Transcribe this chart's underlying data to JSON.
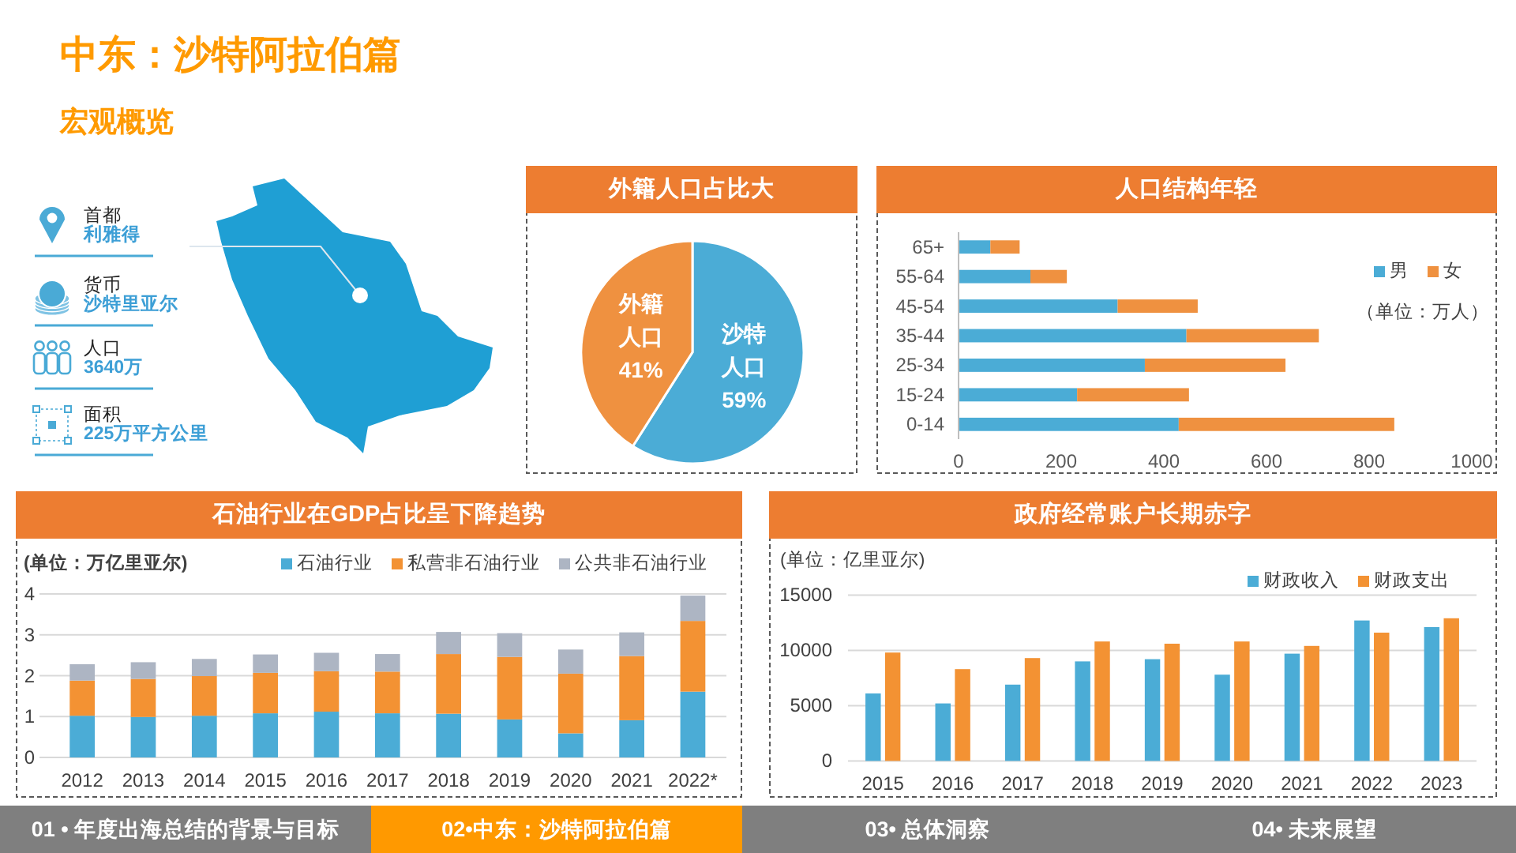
{
  "chart_data": [
    {
      "type": "other",
      "title": "中东：沙特阿拉伯篇",
      "subtitle": "宏观概览",
      "annotations": [
        "首都",
        "利雅得",
        "货币",
        "沙特里亚尔",
        "人口",
        "3640万",
        "面积",
        "225万平方公里"
      ]
    },
    {
      "type": "pie",
      "title": "外籍人口占比大",
      "categories": [
        "沙特人口",
        "外籍人口"
      ],
      "values": [
        59,
        41
      ],
      "colors": [
        "#4bacd6",
        "#ef9140"
      ],
      "value_labels": [
        "59%",
        "41%"
      ]
    },
    {
      "type": "bar",
      "orientation": "horizontal",
      "stacked": true,
      "title": "人口结构年轻",
      "categories": [
        "65+",
        "55-64",
        "45-54",
        "35-44",
        "25-34",
        "15-24",
        "0-14"
      ],
      "series": [
        {
          "name": "男",
          "color": "#4bacd6",
          "values": [
            62,
            140,
            310,
            444,
            363,
            231,
            429
          ]
        },
        {
          "name": "女",
          "color": "#ef9140",
          "values": [
            57,
            71,
            156,
            258,
            274,
            218,
            420
          ]
        }
      ],
      "xlim": [
        0,
        1000
      ],
      "xticks": [
        0,
        200,
        400,
        600,
        800,
        1000
      ],
      "legend": "right",
      "annotations": [
        "（单位：万人）"
      ]
    },
    {
      "type": "bar",
      "stacked": true,
      "title": "石油行业在GDP占比呈下降趋势",
      "x": [
        2012,
        2013,
        2014,
        2015,
        2016,
        2017,
        2018,
        2019,
        2020,
        2021,
        2022
      ],
      "xlim": [
        2011.3,
        2022.55
      ],
      "xticks": [
        2012,
        2013,
        2014,
        2015,
        2016,
        2017,
        2018,
        2019,
        2020,
        2021,
        {
          "value": 2022,
          "label": "2022*"
        }
      ],
      "series": [
        {
          "name": "石油行业",
          "color": "#4bacd6",
          "values": [
            1.02,
            0.99,
            1.02,
            1.08,
            1.12,
            1.08,
            1.07,
            0.93,
            0.59,
            0.91,
            1.61
          ]
        },
        {
          "name": "私营非石油行业",
          "color": "#f39233",
          "values": [
            0.86,
            0.93,
            0.97,
            0.99,
            0.99,
            1.02,
            1.46,
            1.53,
            1.46,
            1.57,
            1.73
          ]
        },
        {
          "name": "公共非石油行业",
          "color": "#adb5c3",
          "values": [
            0.4,
            0.41,
            0.42,
            0.45,
            0.45,
            0.43,
            0.54,
            0.58,
            0.59,
            0.58,
            0.62
          ]
        }
      ],
      "ylim": [
        0,
        4
      ],
      "yticks": [
        0,
        1,
        2,
        3,
        4
      ],
      "grid": "y",
      "legend": "top right",
      "annotations": [
        "(单位：万亿里亚尔)"
      ]
    },
    {
      "type": "bar",
      "title": "政府经常账户长期赤字",
      "x": [
        2015,
        2016,
        2017,
        2018,
        2019,
        2020,
        2021,
        2022,
        2023
      ],
      "xlim": [
        2014.5,
        2023.5
      ],
      "xticks": [
        2015,
        2016,
        2017,
        2018,
        2019,
        2020,
        2021,
        2022,
        2023
      ],
      "series": [
        {
          "name": "财政收入",
          "color": "#4bacd6",
          "values": [
            6100,
            5200,
            6900,
            9000,
            9200,
            7800,
            9700,
            12700,
            12100
          ]
        },
        {
          "name": "财政支出",
          "color": "#f39233",
          "values": [
            9800,
            8300,
            9300,
            10800,
            10600,
            10800,
            10400,
            11600,
            12900
          ]
        }
      ],
      "ylim": [
        0,
        15000
      ],
      "yticks": [
        0,
        5000,
        10000,
        15000
      ],
      "grid": "y",
      "legend": "top right",
      "annotations": [
        "(单位：亿里亚尔)"
      ]
    },
    {
      "type": "other",
      "annotations": [
        "01 • 年度出海总结的背景与目标",
        "02•中东：沙特阿拉伯篇",
        "03• 总体洞察",
        "04• 未来展望"
      ],
      "colors": [
        "#7f7f7f",
        "#ff9900",
        "#7f7f7f",
        "#7f7f7f"
      ]
    }
  ]
}
